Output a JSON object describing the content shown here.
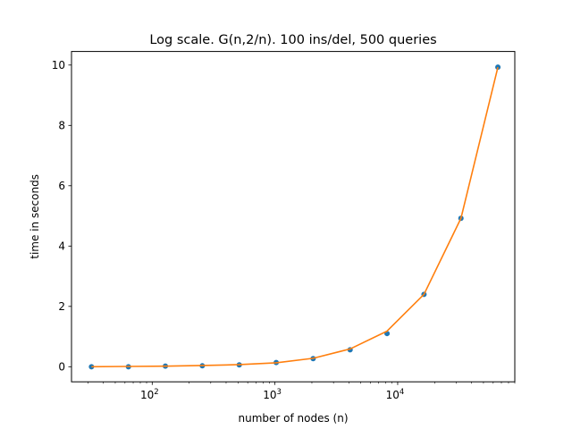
{
  "chart_data": {
    "type": "line",
    "title": "Log scale. G(n,2/n). 100 ins/del, 500 queries",
    "xlabel": "number of nodes (n)",
    "ylabel": "time in seconds",
    "xscale": "log",
    "xlim": [
      22,
      90000
    ],
    "ylim": [
      -0.5,
      10.45
    ],
    "x_ticks": [
      {
        "value": 100,
        "base": "10",
        "exp": "2"
      },
      {
        "value": 1000,
        "base": "10",
        "exp": "3"
      },
      {
        "value": 10000,
        "base": "10",
        "exp": "4"
      }
    ],
    "y_ticks": [
      "0",
      "2",
      "4",
      "6",
      "8",
      "10"
    ],
    "grid": false,
    "series": [
      {
        "style": "scatter",
        "color": "#1f77b4",
        "x": [
          32,
          64,
          128,
          256,
          512,
          1024,
          2048,
          4096,
          8192,
          16384,
          32768,
          65536
        ],
        "y": [
          0.0,
          0.0,
          0.02,
          0.03,
          0.06,
          0.14,
          0.27,
          0.56,
          1.1,
          2.4,
          4.92,
          9.93
        ]
      },
      {
        "style": "line",
        "color": "#ff7f0e",
        "x": [
          32,
          64,
          128,
          256,
          512,
          1024,
          2048,
          4096,
          8192,
          16384,
          32768,
          65536
        ],
        "y": [
          0.0,
          0.01,
          0.02,
          0.04,
          0.07,
          0.13,
          0.28,
          0.59,
          1.18,
          2.4,
          4.92,
          9.93
        ]
      }
    ]
  }
}
